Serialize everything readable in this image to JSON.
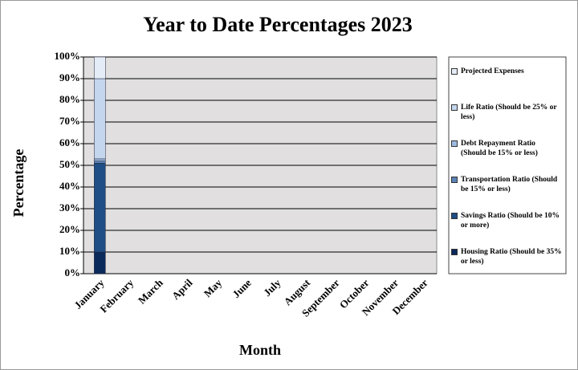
{
  "chart_data": {
    "type": "stacked_bar",
    "title": "Year to Date Percentages 2023",
    "x_label": "Month",
    "y_label": "Percentage",
    "categories": [
      "January",
      "February",
      "March",
      "April",
      "May",
      "June",
      "July",
      "August",
      "September",
      "October",
      "November",
      "December"
    ],
    "series": [
      {
        "name": "Housing Ratio (Should be 35% or less)",
        "color": "#0b2a5c",
        "values": [
          10,
          null,
          null,
          null,
          null,
          null,
          null,
          null,
          null,
          null,
          null,
          null
        ]
      },
      {
        "name": "Savings Ratio (Should be 10% or more)",
        "color": "#1f4d85",
        "values": [
          41,
          null,
          null,
          null,
          null,
          null,
          null,
          null,
          null,
          null,
          null,
          null
        ]
      },
      {
        "name": "Transportation Ratio (Should be 15% or less)",
        "color": "#5a83b6",
        "values": [
          1,
          null,
          null,
          null,
          null,
          null,
          null,
          null,
          null,
          null,
          null,
          null
        ]
      },
      {
        "name": "Debt Repayment Ratio (Should be 15% or less)",
        "color": "#9dbbe0",
        "values": [
          1,
          null,
          null,
          null,
          null,
          null,
          null,
          null,
          null,
          null,
          null,
          null
        ]
      },
      {
        "name": "Life Ratio (Should be 25% or less)",
        "color": "#c4d6ee",
        "values": [
          37,
          null,
          null,
          null,
          null,
          null,
          null,
          null,
          null,
          null,
          null,
          null
        ]
      },
      {
        "name": "Projected Expenses",
        "color": "#e4ecf7",
        "values": [
          10,
          null,
          null,
          null,
          null,
          null,
          null,
          null,
          null,
          null,
          null,
          null
        ]
      }
    ],
    "ylim": [
      0,
      100
    ],
    "yticks": [
      {
        "value": 0,
        "label": "0%"
      },
      {
        "value": 10,
        "label": "10%"
      },
      {
        "value": 20,
        "label": "20%"
      },
      {
        "value": 30,
        "label": "30%"
      },
      {
        "value": 40,
        "label": "40%"
      },
      {
        "value": 50,
        "label": "50%"
      },
      {
        "value": 60,
        "label": "60%"
      },
      {
        "value": 70,
        "label": "70%"
      },
      {
        "value": 80,
        "label": "80%"
      },
      {
        "value": 90,
        "label": "90%"
      },
      {
        "value": 100,
        "label": "100%"
      }
    ],
    "grid": true,
    "legend": "right"
  }
}
